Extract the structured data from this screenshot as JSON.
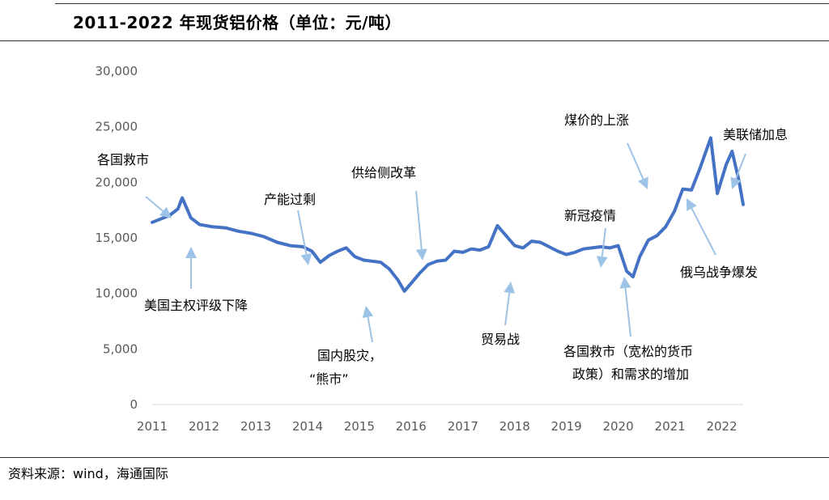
{
  "title": "2011-2022 年现货铝价格（单位：元/吨）",
  "source": "资料来源：wind，海通国际",
  "colors": {
    "series": "#4472C4",
    "arrow": "#9DC3E6",
    "axis_text": "#595959",
    "axis_line": "#D9D9D9"
  },
  "chart_data": {
    "type": "line",
    "title": "2011-2022 年现货铝价格（单位：元/吨）",
    "xlabel": "",
    "ylabel": "",
    "x_ticks": [
      "2011",
      "2012",
      "2013",
      "2014",
      "2015",
      "2016",
      "2017",
      "2018",
      "2019",
      "2020",
      "2021",
      "2022"
    ],
    "y_ticks": [
      "0",
      "5,000",
      "10,000",
      "15,000",
      "20,000",
      "25,000",
      "30,000"
    ],
    "xlim": [
      "2011-01-01",
      "2022-06-01"
    ],
    "ylim": [
      0,
      30000
    ],
    "grid": false,
    "series": [
      {
        "name": "",
        "x": [
          "2011-01-01",
          "2011-03-01",
          "2011-05-01",
          "2011-07-01",
          "2011-08-01",
          "2011-10-01",
          "2011-12-01",
          "2012-03-01",
          "2012-06-01",
          "2012-09-01",
          "2012-12-01",
          "2013-03-01",
          "2013-06-01",
          "2013-09-01",
          "2013-12-01",
          "2014-02-01",
          "2014-04-01",
          "2014-06-01",
          "2014-08-01",
          "2014-10-01",
          "2014-12-01",
          "2015-02-01",
          "2015-04-01",
          "2015-06-01",
          "2015-08-01",
          "2015-10-01",
          "2015-11-15",
          "2016-01-01",
          "2016-03-01",
          "2016-05-01",
          "2016-07-01",
          "2016-09-01",
          "2016-11-01",
          "2017-01-01",
          "2017-03-01",
          "2017-05-01",
          "2017-07-01",
          "2017-09-01",
          "2017-11-01",
          "2018-01-01",
          "2018-03-01",
          "2018-05-01",
          "2018-07-01",
          "2018-09-01",
          "2018-11-01",
          "2019-01-01",
          "2019-03-01",
          "2019-05-01",
          "2019-07-01",
          "2019-09-01",
          "2019-11-01",
          "2020-01-01",
          "2020-03-01",
          "2020-04-15",
          "2020-06-01",
          "2020-08-01",
          "2020-10-01",
          "2020-12-01",
          "2021-02-01",
          "2021-04-01",
          "2021-06-01",
          "2021-08-01",
          "2021-10-15",
          "2021-12-01",
          "2022-02-01",
          "2022-03-15",
          "2022-05-01",
          "2022-06-01"
        ],
        "y": [
          16400,
          16700,
          17000,
          17600,
          18600,
          16800,
          16200,
          16000,
          15900,
          15600,
          15400,
          15100,
          14600,
          14300,
          14200,
          13800,
          12800,
          13400,
          13800,
          14100,
          13300,
          13000,
          12900,
          12800,
          12200,
          11200,
          10200,
          10900,
          11800,
          12600,
          12900,
          13000,
          13800,
          13700,
          14000,
          13900,
          14200,
          16100,
          15200,
          14300,
          14100,
          14700,
          14600,
          14200,
          13800,
          13500,
          13700,
          14000,
          14100,
          14200,
          14100,
          14300,
          12000,
          11500,
          13300,
          14800,
          15200,
          16000,
          17400,
          19400,
          19300,
          21300,
          24000,
          19000,
          21600,
          22800,
          20200,
          18000
        ]
      }
    ],
    "annotations": [
      "各国救市",
      "美国主权评级下降",
      "产能过剩",
      "国内股灾，",
      "“熊市”",
      "供给侧改革",
      "贸易战",
      "新冠疫情",
      "各国救市（宽松的货币",
      "政策）和需求的增加",
      "煤价的上涨",
      "美联储加息",
      "俄乌战争爆发"
    ]
  }
}
